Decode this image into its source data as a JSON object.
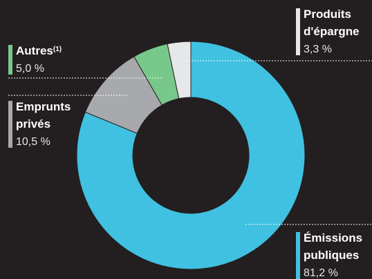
{
  "chart_data": {
    "type": "donut",
    "categories": [
      "Émissions publiques",
      "Emprunts privés",
      "Autres",
      "Produits d'épargne"
    ],
    "label_notes": [
      null,
      null,
      "(1)",
      null
    ],
    "values": [
      81.2,
      10.5,
      5.0,
      3.3
    ],
    "value_labels": [
      "81,2 %",
      "10,5 %",
      "5,0 %",
      "3,3 %"
    ],
    "colors": [
      "#40c1e1",
      "#a7a9ac",
      "#79c88b",
      "#e6e7e8"
    ]
  }
}
